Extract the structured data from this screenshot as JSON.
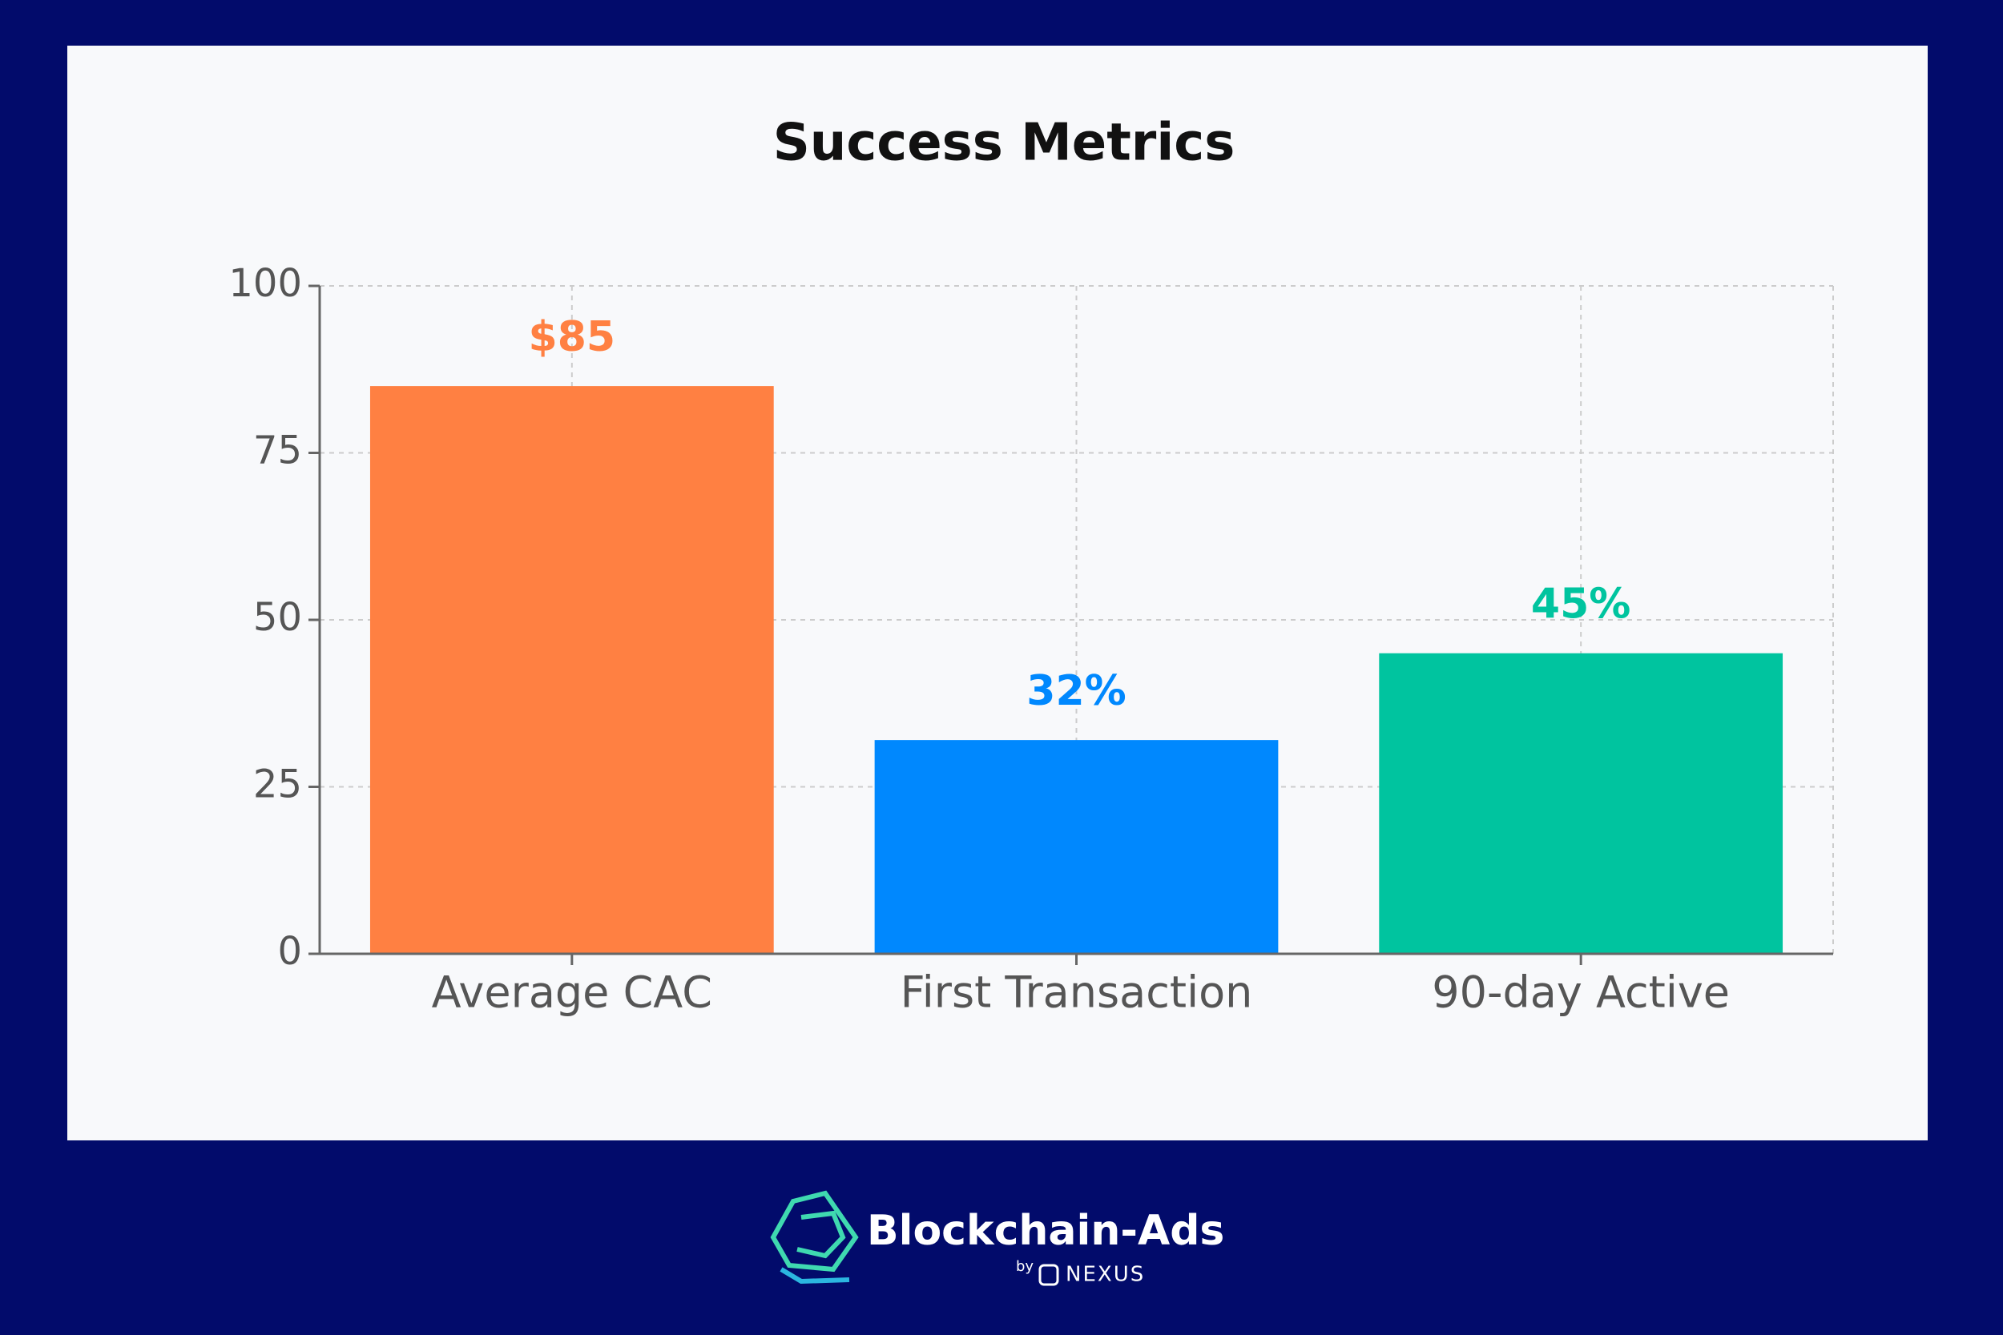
{
  "chart_data": {
    "type": "bar",
    "title": "Success Metrics",
    "categories": [
      "Average CAC",
      "First Transaction",
      "90-day Active"
    ],
    "values": [
      85,
      32,
      45
    ],
    "value_labels": [
      "$85",
      "32%",
      "45%"
    ],
    "colors": [
      "#ff8042",
      "#0088fe",
      "#00c49f"
    ],
    "ylim": [
      0,
      100
    ],
    "yticks": [
      0,
      25,
      50,
      75,
      100
    ],
    "grid": true
  },
  "footer": {
    "brand": "Blockchain-Ads",
    "by": "by",
    "partner": "NEXUS"
  }
}
